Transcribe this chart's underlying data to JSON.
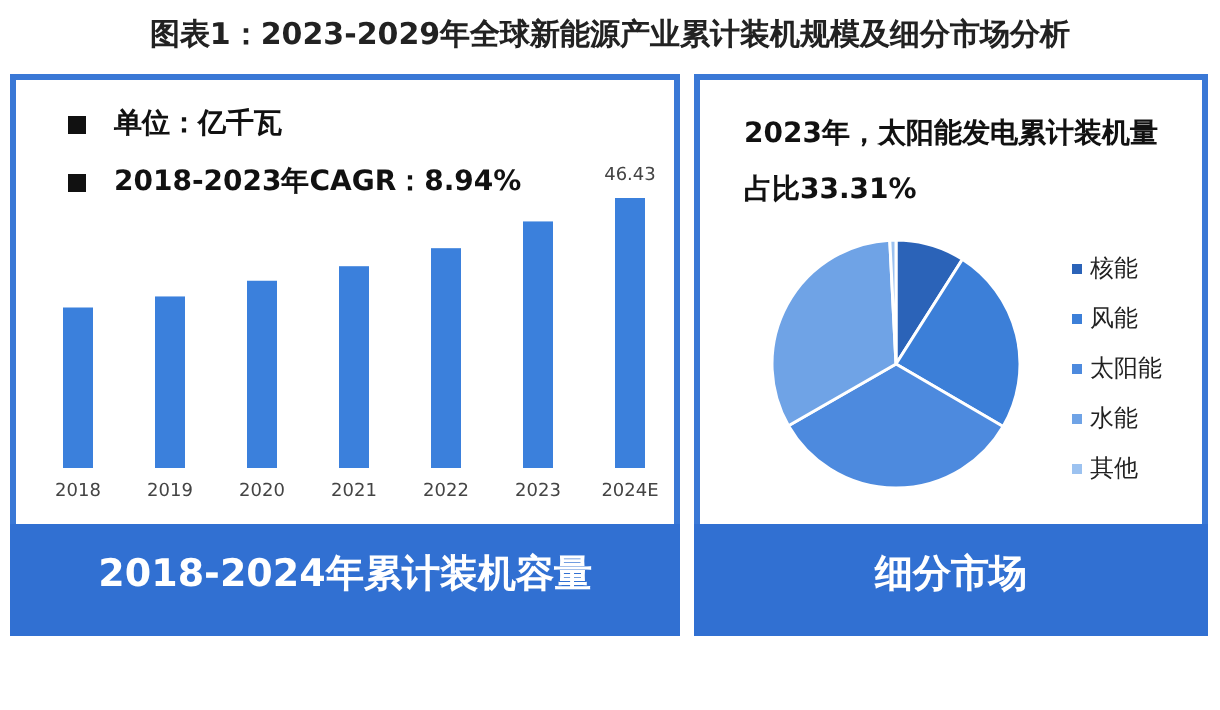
{
  "chart_data": [
    {
      "type": "bar",
      "title": "图表1：2023-2029年全球新能源产业累计装机规模及细分市场分析",
      "subtitle": "2018-2024年累计装机容量",
      "categories": [
        "2018",
        "2019",
        "2020",
        "2021",
        "2022",
        "2023",
        "2024E"
      ],
      "values": [
        27.6,
        29.5,
        32.2,
        34.7,
        37.8,
        42.4,
        46.43
      ],
      "value_labels": [
        null,
        null,
        null,
        null,
        null,
        null,
        "46.43"
      ],
      "color": "#3b80dc",
      "annotations": [
        "单位：亿千瓦",
        "2018-2023年CAGR：8.94%"
      ]
    },
    {
      "type": "pie",
      "title": "细分市场",
      "subtitle": "2023年，太阳能发电累计装机量占比33.31%",
      "categories": [
        "核能",
        "风能",
        "太阳能",
        "水能",
        "其他"
      ],
      "values": [
        9,
        24.4,
        33.31,
        32.49,
        0.8
      ],
      "colors": [
        "#2b63b8",
        "#3c7fd8",
        "#4d8ade",
        "#6fa3e6",
        "#9cc2f0"
      ],
      "legend": "right"
    }
  ]
}
